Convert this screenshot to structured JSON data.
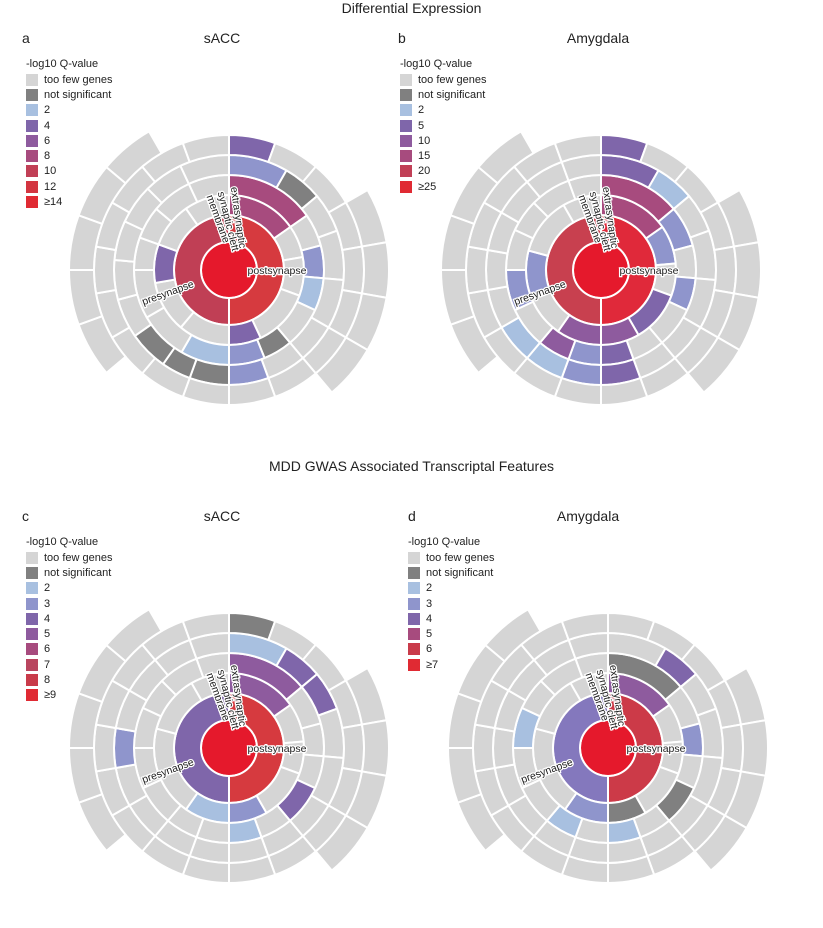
{
  "sections": [
    {
      "title": "Differential Expression"
    },
    {
      "title": "MDD GWAS Associated Transcriptal Features"
    }
  ],
  "legend_title": "-log10 Q-value",
  "colors": {
    "too_few": "#d5d5d5",
    "not_sig": "#808080",
    "scale": [
      "#a8c0e0",
      "#8f95cc",
      "#7f66aa",
      "#8e5b9e",
      "#a74b7e",
      "#b9455f",
      "#c93b4a",
      "#e02a33"
    ],
    "center": "#e5192c"
  },
  "sector_labels": {
    "presynapse": "presynapse",
    "postsynapse": "postsynapse",
    "membrane": "membrane",
    "synaptic_cleft": "synaptic cleft",
    "extrasynaptic": "extrasynaptic"
  },
  "panels": [
    {
      "letter": "a",
      "title": "sACC",
      "legend": [
        {
          "label": "too few genes",
          "color": "#d5d5d5"
        },
        {
          "label": "not significant",
          "color": "#808080"
        },
        {
          "label": "2",
          "color": "#a8c0e0"
        },
        {
          "label": "4",
          "color": "#7f66aa"
        },
        {
          "label": "6",
          "color": "#8e5b9e"
        },
        {
          "label": "8",
          "color": "#a74b7e"
        },
        {
          "label": "10",
          "color": "#c13f56"
        },
        {
          "label": "12",
          "color": "#d33540"
        },
        {
          "label": "≥14",
          "color": "#e02a33"
        }
      ],
      "chart_data": {
        "type": "sunburst",
        "rings": {
          "ring1": {
            "post": "#d63a3f",
            "pre": "#c03f55"
          },
          "ring2_post": "#d5d5d5",
          "ring2_pre": "#d5d5d5"
        }
      }
    },
    {
      "letter": "b",
      "title": "Amygdala",
      "legend": [
        {
          "label": "too few genes",
          "color": "#d5d5d5"
        },
        {
          "label": "not significant",
          "color": "#808080"
        },
        {
          "label": "2",
          "color": "#a8c0e0"
        },
        {
          "label": "5",
          "color": "#7f66aa"
        },
        {
          "label": "10",
          "color": "#8e5b9e"
        },
        {
          "label": "15",
          "color": "#a74b7e"
        },
        {
          "label": "20",
          "color": "#c13f56"
        },
        {
          "label": "≥25",
          "color": "#e02a33"
        }
      ],
      "chart_data": {
        "type": "sunburst",
        "rings": {
          "ring1": {
            "post": "#e0293a",
            "pre": "#c8404f"
          }
        }
      }
    },
    {
      "letter": "c",
      "title": "sACC",
      "legend": [
        {
          "label": "too few genes",
          "color": "#d5d5d5"
        },
        {
          "label": "not significant",
          "color": "#808080"
        },
        {
          "label": "2",
          "color": "#a8c0e0"
        },
        {
          "label": "3",
          "color": "#8f95cc"
        },
        {
          "label": "4",
          "color": "#7f66aa"
        },
        {
          "label": "5",
          "color": "#8e5b9e"
        },
        {
          "label": "6",
          "color": "#a74b7e"
        },
        {
          "label": "7",
          "color": "#b9455f"
        },
        {
          "label": "8",
          "color": "#c93b4a"
        },
        {
          "label": "≥9",
          "color": "#e02a33"
        }
      ],
      "chart_data": {
        "type": "sunburst",
        "rings": {
          "ring1": {
            "post": "#d63a3f",
            "pre": "#7f66aa"
          }
        }
      }
    },
    {
      "letter": "d",
      "title": "Amygdala",
      "legend": [
        {
          "label": "too few genes",
          "color": "#d5d5d5"
        },
        {
          "label": "not significant",
          "color": "#808080"
        },
        {
          "label": "2",
          "color": "#a8c0e0"
        },
        {
          "label": "3",
          "color": "#8f95cc"
        },
        {
          "label": "4",
          "color": "#7f66aa"
        },
        {
          "label": "5",
          "color": "#a74b7e"
        },
        {
          "label": "6",
          "color": "#c93b4a"
        },
        {
          "label": "≥7",
          "color": "#e02a33"
        }
      ],
      "chart_data": {
        "type": "sunburst",
        "rings": {
          "ring1": {
            "post": "#cc3a48",
            "pre": "#8478bd"
          }
        }
      }
    }
  ]
}
